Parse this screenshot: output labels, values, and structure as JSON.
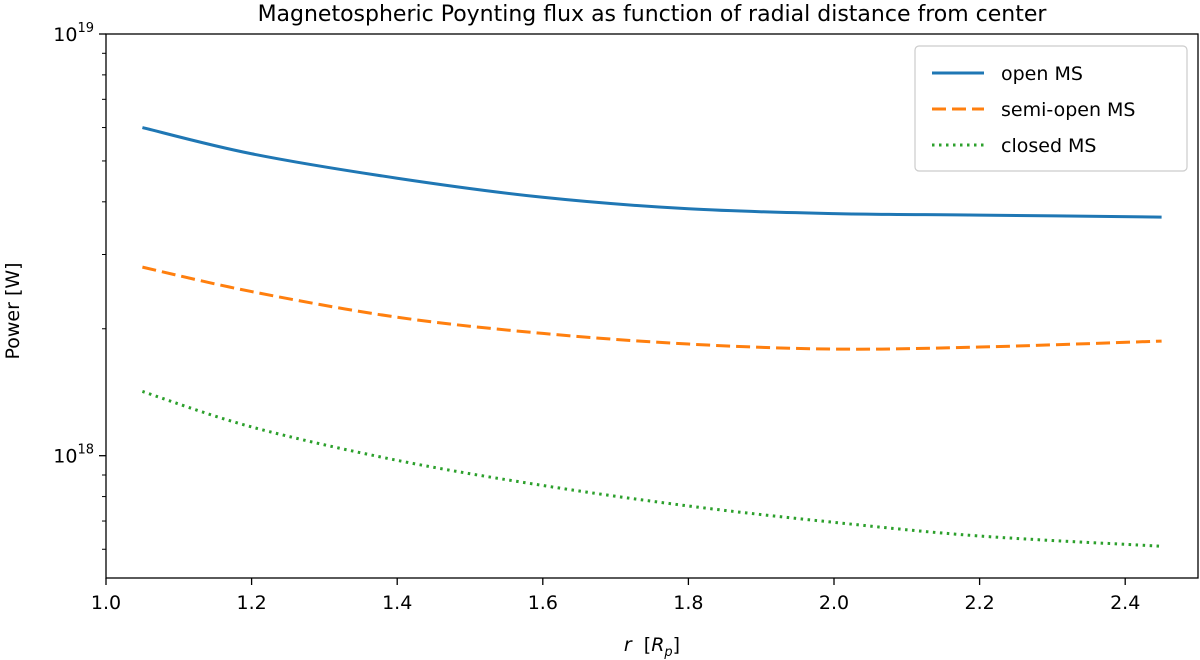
{
  "chart_data": {
    "type": "line",
    "title": "Magnetospheric Poynting flux as function of radial distance from center",
    "xlabel_main": "r",
    "xlabel_unit_open": "[",
    "xlabel_unit_sym": "R",
    "xlabel_unit_sub": "p",
    "xlabel_unit_close": "]",
    "ylabel": "Power [W]",
    "xlim": [
      1.0,
      2.5
    ],
    "ylim_log10": [
      17.71,
      19.0
    ],
    "yscale": "log",
    "x_ticks": [
      1.0,
      1.2,
      1.4,
      1.6,
      1.8,
      2.0,
      2.2,
      2.4
    ],
    "x_tick_labels": [
      "1.0",
      "1.2",
      "1.4",
      "1.6",
      "1.8",
      "2.0",
      "2.2",
      "2.4"
    ],
    "y_ticks": [
      {
        "value": 1e+18,
        "base": "10",
        "exp": "18"
      },
      {
        "value": 1e+19,
        "base": "10",
        "exp": "19"
      }
    ],
    "x": [
      1.05,
      1.2,
      1.4,
      1.6,
      1.8,
      2.0,
      2.2,
      2.45
    ],
    "series": [
      {
        "name": "open MS",
        "color": "#1f77b4",
        "dash": "solid",
        "values": [
          6e+18,
          5.2e+18,
          4.55e+18,
          4.1e+18,
          3.85e+18,
          3.75e+18,
          3.72e+18,
          3.68e+18
        ]
      },
      {
        "name": "semi-open MS",
        "color": "#ff7f0e",
        "dash": "dashed",
        "values": [
          2.8e+18,
          2.45e+18,
          2.13e+18,
          1.95e+18,
          1.84e+18,
          1.79e+18,
          1.81e+18,
          1.87e+18
        ]
      },
      {
        "name": "closed MS",
        "color": "#2ca02c",
        "dash": "dotted",
        "values": [
          1.42e+18,
          1.17e+18,
          9.75e+17,
          8.5e+17,
          7.6e+17,
          6.95e+17,
          6.45e+17,
          6.1e+17
        ]
      }
    ],
    "legend_position": "top-right",
    "grid": false
  }
}
